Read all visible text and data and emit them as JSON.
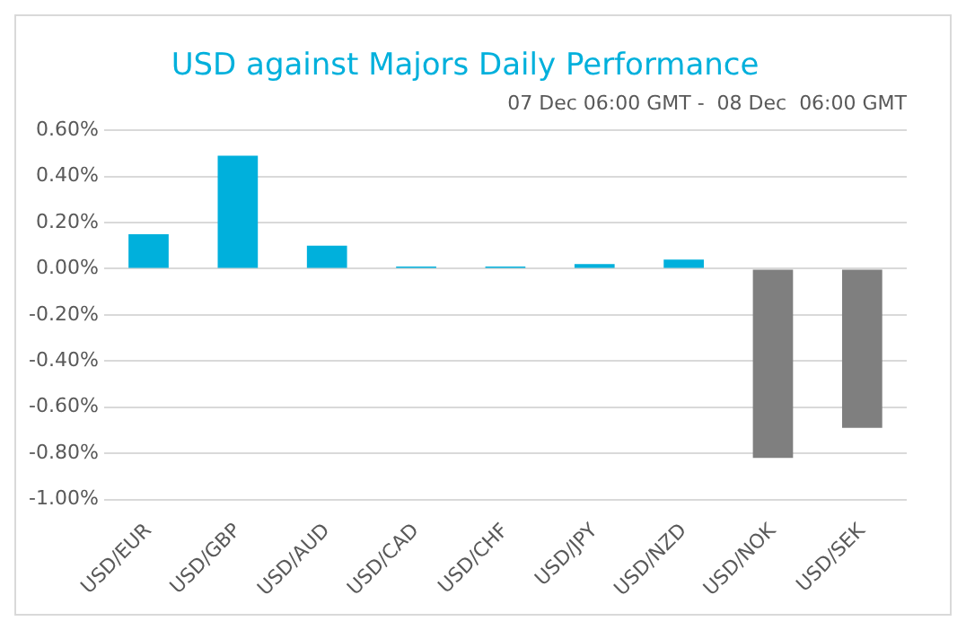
{
  "chart_data": {
    "type": "bar",
    "title": "USD against Majors Daily Performance",
    "subtitle": "07 Dec 06:00 GMT -  08 Dec  06:00 GMT",
    "categories": [
      "USD/EUR",
      "USD/GBP",
      "USD/AUD",
      "USD/CAD",
      "USD/CHF",
      "USD/JPY",
      "USD/NZD",
      "USD/NOK",
      "USD/SEK"
    ],
    "values": [
      0.15,
      0.49,
      0.1,
      0.01,
      0.01,
      0.02,
      0.04,
      -0.82,
      -0.69
    ],
    "colors": [
      "#00b0dc",
      "#00b0dc",
      "#00b0dc",
      "#00b0dc",
      "#00b0dc",
      "#00b0dc",
      "#00b0dc",
      "#7f7f7f",
      "#7f7f7f"
    ],
    "ylim": [
      -1,
      0.6
    ],
    "yticks": [
      {
        "value": -1,
        "label": "-1.00%"
      },
      {
        "value": -0.8,
        "label": "-0.80%"
      },
      {
        "value": -0.6,
        "label": "-0.60%"
      },
      {
        "value": -0.4,
        "label": "-0.40%"
      },
      {
        "value": -0.2,
        "label": "-0.20%"
      },
      {
        "value": 0,
        "label": "0.00%"
      },
      {
        "value": 0.2,
        "label": "0.20%"
      },
      {
        "value": 0.4,
        "label": "0.40%"
      },
      {
        "value": 0.6,
        "label": "0.60%"
      }
    ],
    "grid": "y",
    "legend": false
  }
}
